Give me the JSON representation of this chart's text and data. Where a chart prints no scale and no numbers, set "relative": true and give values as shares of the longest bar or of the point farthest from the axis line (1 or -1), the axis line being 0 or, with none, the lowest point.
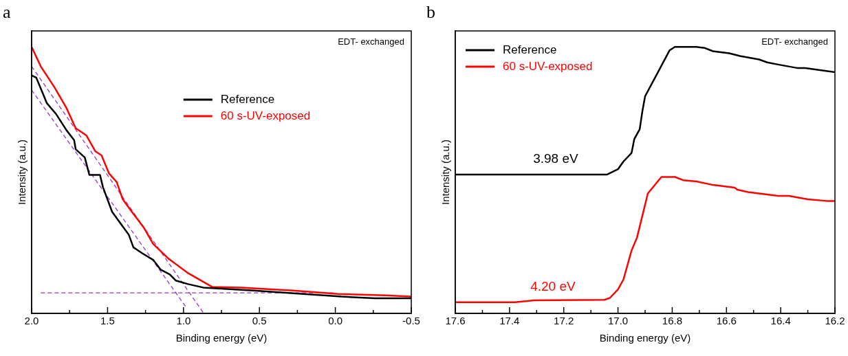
{
  "chart_data": [
    {
      "type": "line",
      "title": "a",
      "xlabel": "Binding energy (eV)",
      "ylabel": "Intensity (a.u.)",
      "relative": true,
      "legend": "top right",
      "annotations": [
        "EDT- exchanged"
      ],
      "xlim": [
        2.0,
        -0.5
      ],
      "xticks": [
        {
          "value": 2.0,
          "label": "2.0"
        },
        {
          "value": 1.75,
          "label": null
        },
        {
          "value": 1.5,
          "label": "1.5"
        },
        {
          "value": 1.25,
          "label": null
        },
        {
          "value": 1.0,
          "label": "1.0"
        },
        {
          "value": 0.75,
          "label": null
        },
        {
          "value": 0.5,
          "label": "0.5"
        },
        {
          "value": 0.25,
          "label": null
        },
        {
          "value": 0.0,
          "label": "0.0"
        },
        {
          "value": -0.25,
          "label": null
        },
        {
          "value": -0.5,
          "label": "-0.5"
        }
      ],
      "series": [
        {
          "name": "Reference",
          "color": "#000000",
          "x": [
            2.0,
            1.97,
            1.9,
            1.84,
            1.77,
            1.72,
            1.71,
            1.65,
            1.62,
            1.55,
            1.53,
            1.47,
            1.41,
            1.36,
            1.33,
            1.27,
            1.2,
            1.15,
            1.09,
            1.05,
            0.97,
            0.87,
            0.54,
            0.21,
            -0.04,
            -0.26,
            -0.5
          ],
          "values": [
            0.893,
            0.885,
            0.789,
            0.749,
            0.687,
            0.65,
            0.616,
            0.585,
            0.52,
            0.52,
            0.473,
            0.381,
            0.334,
            0.295,
            0.248,
            0.225,
            0.201,
            0.164,
            0.146,
            0.123,
            0.11,
            0.097,
            0.086,
            0.073,
            0.063,
            0.057,
            0.057
          ]
        },
        {
          "name": "60 s-UV-exposed",
          "color": "#ff0000",
          "x": [
            2.0,
            1.94,
            1.85,
            1.77,
            1.71,
            1.64,
            1.58,
            1.54,
            1.49,
            1.44,
            1.4,
            1.34,
            1.26,
            1.2,
            1.1,
            0.97,
            0.81,
            0.62,
            0.28,
            -0.02,
            -0.33,
            -0.5
          ],
          "values": [
            1.0,
            0.927,
            0.849,
            0.77,
            0.695,
            0.668,
            0.608,
            0.593,
            0.525,
            0.493,
            0.428,
            0.381,
            0.321,
            0.261,
            0.206,
            0.151,
            0.099,
            0.097,
            0.086,
            0.073,
            0.068,
            0.063
          ]
        },
        {
          "color": "#9932cc",
          "line_style": "dashed",
          "x": [
            1.94,
            0.01
          ],
          "values": [
            0.077,
            0.077
          ]
        },
        {
          "color": "#9932cc",
          "line_style": "dashed",
          "x": [
            2.0,
            0.87
          ],
          "values": [
            0.927,
            0.003
          ]
        },
        {
          "color": "#9932cc",
          "line_style": "dashed",
          "x": [
            2.0,
            0.98
          ],
          "values": [
            0.838,
            0.021
          ]
        }
      ]
    },
    {
      "type": "line",
      "title": "b",
      "xlabel": "Binding energy (eV)",
      "ylabel": "Intensity (a.u.)",
      "relative": true,
      "legend": "top left",
      "annotations": [
        "EDT- exchanged",
        {
          "text": "3.98 eV",
          "x": 17.23,
          "y": 0.521
        },
        {
          "text": "4.20 eV",
          "x": 17.24,
          "y": 0.042
        }
      ],
      "xlim": [
        17.6,
        16.2
      ],
      "xticks": [
        {
          "value": 17.6,
          "label": "17.6"
        },
        {
          "value": 17.5,
          "label": null
        },
        {
          "value": 17.4,
          "label": "17.4"
        },
        {
          "value": 17.3,
          "label": null
        },
        {
          "value": 17.2,
          "label": "17.2"
        },
        {
          "value": 17.1,
          "label": null
        },
        {
          "value": 17.0,
          "label": "17.0"
        },
        {
          "value": 16.9,
          "label": null
        },
        {
          "value": 16.8,
          "label": "16.8"
        },
        {
          "value": 16.7,
          "label": null
        },
        {
          "value": 16.6,
          "label": "16.6"
        },
        {
          "value": 16.5,
          "label": null
        },
        {
          "value": 16.4,
          "label": "16.4"
        },
        {
          "value": 16.3,
          "label": null
        },
        {
          "value": 16.2,
          "label": "16.2"
        }
      ],
      "series": [
        {
          "name": "Reference",
          "color": "#000000",
          "x": [
            17.6,
            17.04,
            17.0,
            16.98,
            16.95,
            16.94,
            16.92,
            16.91,
            16.9,
            16.85,
            16.81,
            16.79,
            16.71,
            16.68,
            16.65,
            16.59,
            16.55,
            16.48,
            16.45,
            16.41,
            16.34,
            16.31,
            16.2
          ],
          "values": [
            0.521,
            0.521,
            0.541,
            0.57,
            0.602,
            0.654,
            0.691,
            0.759,
            0.815,
            0.91,
            0.987,
            1.0,
            1.0,
            0.996,
            0.984,
            0.976,
            0.966,
            0.953,
            0.942,
            0.934,
            0.921,
            0.921,
            0.905
          ]
        },
        {
          "name": "60 s-UV-exposed",
          "color": "#ff0000",
          "x": [
            17.6,
            17.38,
            17.31,
            17.05,
            17.03,
            17.0,
            16.98,
            16.95,
            16.93,
            16.89,
            16.84,
            16.79,
            16.76,
            16.71,
            16.65,
            16.57,
            16.56,
            16.52,
            16.48,
            16.41,
            16.37,
            16.3,
            16.23,
            16.2
          ],
          "values": [
            0.042,
            0.042,
            0.049,
            0.051,
            0.058,
            0.09,
            0.127,
            0.236,
            0.284,
            0.45,
            0.512,
            0.512,
            0.5,
            0.495,
            0.482,
            0.472,
            0.464,
            0.455,
            0.45,
            0.441,
            0.441,
            0.428,
            0.422,
            0.422
          ]
        }
      ]
    }
  ]
}
